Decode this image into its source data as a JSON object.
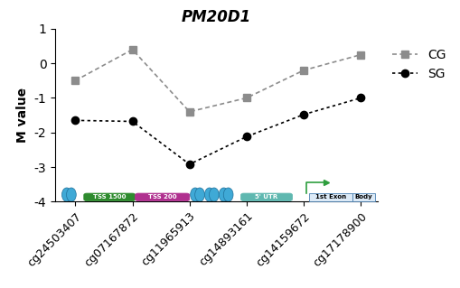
{
  "chart_data": {
    "type": "line",
    "title": "PM20D1",
    "y_label": "M value",
    "categories": [
      "cg24503407",
      "cg07167872",
      "cg11965913",
      "cg14893161",
      "cg14159672",
      "cg17178900"
    ],
    "series": [
      {
        "name": "CG",
        "color": "#8c8c8c",
        "marker": "s",
        "line_style": "dashed",
        "values": [
          -0.5,
          0.4,
          -1.4,
          -1.0,
          -0.2,
          0.25
        ]
      },
      {
        "name": "SG",
        "color": "#000000",
        "marker": "o",
        "line_style": "dotted",
        "values": [
          -1.65,
          -1.68,
          -2.92,
          -2.12,
          -1.48,
          -1.0
        ]
      }
    ],
    "ylim": [
      -4,
      1
    ],
    "yticks": [
      -4,
      -3,
      -2,
      -1,
      0,
      1
    ],
    "legend": "upper left",
    "grid": false,
    "annotations": [
      "TSS 1500",
      "TSS 200",
      "5' UTR",
      "1st Exon",
      "Body"
    ]
  }
}
